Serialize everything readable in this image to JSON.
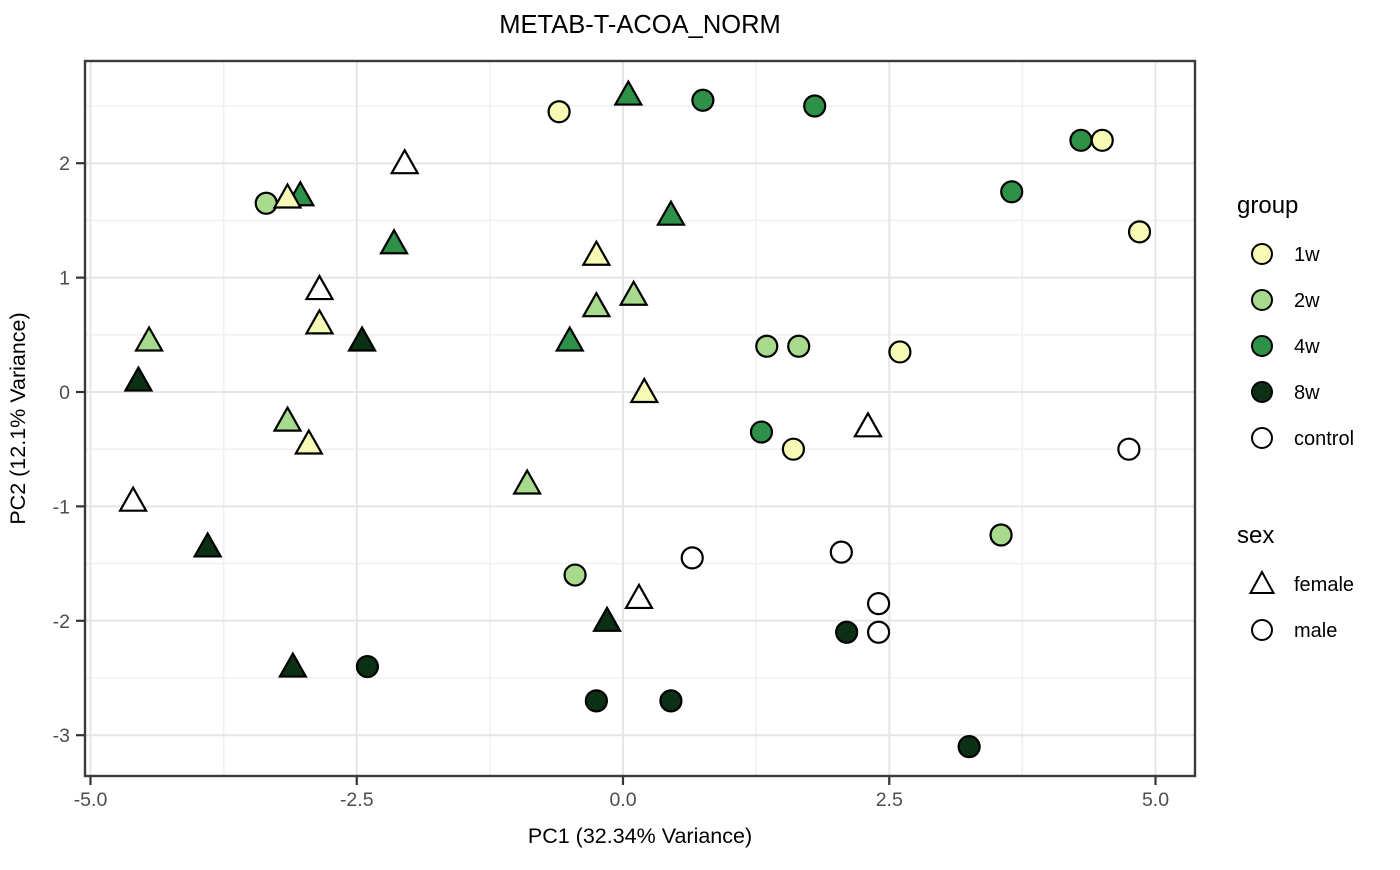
{
  "title": "METAB-T-ACOA_NORM",
  "axes": {
    "x": {
      "label": "PC1 (32.34% Variance)",
      "ticks": [
        -5.0,
        -2.5,
        0.0,
        2.5,
        5.0
      ],
      "tick_labels": [
        "-5.0",
        "-2.5",
        "0.0",
        "2.5",
        "5.0"
      ],
      "minor_ticks": [
        -3.75,
        -1.25,
        1.25,
        3.75
      ]
    },
    "y": {
      "label": "PC2 (12.1% Variance)",
      "ticks": [
        2,
        1,
        0,
        -1,
        -2,
        -3
      ],
      "tick_labels": [
        "2",
        "1",
        "0",
        "-1",
        "-2",
        "-3"
      ],
      "minor_ticks": [
        2.5,
        1.5,
        0.5,
        -0.5,
        -1.5,
        -2.5
      ]
    }
  },
  "colors": {
    "1w": "#F6FAB4",
    "2w": "#A7DA8D",
    "4w": "#2E9148",
    "8w": "#0C3014",
    "control": "#FFFFFF",
    "marker_stroke": "#000000",
    "grid_major": "#E5E5E5",
    "grid_minor": "#F0F0F0",
    "panel_border": "#3B3B3B",
    "tick_text": "#4D4D4D",
    "axis_text": "#000000"
  },
  "legend": {
    "group": {
      "title": "group",
      "items": [
        {
          "label": "1w",
          "color": "#F6FAB4"
        },
        {
          "label": "2w",
          "color": "#A7DA8D"
        },
        {
          "label": "4w",
          "color": "#2E9148"
        },
        {
          "label": "8w",
          "color": "#0C3014"
        },
        {
          "label": "control",
          "color": "#FFFFFF"
        }
      ]
    },
    "sex": {
      "title": "sex",
      "items": [
        {
          "label": "female",
          "shape": "triangle"
        },
        {
          "label": "male",
          "shape": "circle"
        }
      ]
    }
  },
  "chart_data": {
    "type": "scatter",
    "title": "METAB-T-ACOA_NORM",
    "xlabel": "PC1 (32.34% Variance)",
    "ylabel": "PC2 (12.1% Variance)",
    "xlim": [
      -5.05,
      5.37
    ],
    "ylim": [
      -3.36,
      2.89
    ],
    "grid": true,
    "legend_position": "right",
    "series": [
      {
        "group": "1w",
        "sex": "female",
        "shape": "triangle",
        "color": "#F6FAB4",
        "points": [
          [
            -3.15,
            1.7
          ],
          [
            -2.85,
            0.6
          ],
          [
            -0.25,
            1.2
          ],
          [
            0.2,
            0.0
          ],
          [
            -2.95,
            -0.45
          ]
        ]
      },
      {
        "group": "1w",
        "sex": "male",
        "shape": "circle",
        "color": "#F6FAB4",
        "points": [
          [
            -0.6,
            2.45
          ],
          [
            4.5,
            2.2
          ],
          [
            4.85,
            1.4
          ],
          [
            2.6,
            0.35
          ],
          [
            1.6,
            -0.5
          ]
        ]
      },
      {
        "group": "2w",
        "sex": "female",
        "shape": "triangle",
        "color": "#A7DA8D",
        "points": [
          [
            -4.45,
            0.45
          ],
          [
            -3.15,
            -0.25
          ],
          [
            0.1,
            0.85
          ],
          [
            -0.25,
            0.75
          ],
          [
            -0.9,
            -0.8
          ]
        ]
      },
      {
        "group": "2w",
        "sex": "male",
        "shape": "circle",
        "color": "#A7DA8D",
        "points": [
          [
            -3.35,
            1.65
          ],
          [
            1.35,
            0.4
          ],
          [
            1.65,
            0.4
          ],
          [
            -0.45,
            -1.6
          ],
          [
            3.55,
            -1.25
          ]
        ]
      },
      {
        "group": "4w",
        "sex": "female",
        "shape": "triangle",
        "color": "#2E9148",
        "points": [
          [
            0.05,
            2.6
          ],
          [
            0.45,
            1.55
          ],
          [
            -2.15,
            1.3
          ],
          [
            -3.03,
            1.72
          ],
          [
            -0.5,
            0.45
          ]
        ]
      },
      {
        "group": "4w",
        "sex": "male",
        "shape": "circle",
        "color": "#2E9148",
        "points": [
          [
            0.75,
            2.55
          ],
          [
            1.8,
            2.5
          ],
          [
            4.3,
            2.2
          ],
          [
            3.65,
            1.75
          ],
          [
            1.3,
            -0.35
          ]
        ]
      },
      {
        "group": "8w",
        "sex": "female",
        "shape": "triangle",
        "color": "#0C3014",
        "points": [
          [
            -4.55,
            0.1
          ],
          [
            -2.45,
            0.45
          ],
          [
            -3.9,
            -1.35
          ],
          [
            -3.1,
            -2.4
          ],
          [
            -0.15,
            -2.0
          ]
        ]
      },
      {
        "group": "8w",
        "sex": "male",
        "shape": "circle",
        "color": "#0C3014",
        "points": [
          [
            -2.4,
            -2.4
          ],
          [
            -0.25,
            -2.7
          ],
          [
            0.45,
            -2.7
          ],
          [
            2.1,
            -2.1
          ],
          [
            3.25,
            -3.1
          ]
        ]
      },
      {
        "group": "control",
        "sex": "female",
        "shape": "triangle",
        "color": "#FFFFFF",
        "points": [
          [
            -2.05,
            2.0
          ],
          [
            -2.85,
            0.9
          ],
          [
            -4.6,
            -0.95
          ],
          [
            0.15,
            -1.8
          ],
          [
            2.3,
            -0.3
          ]
        ]
      },
      {
        "group": "control",
        "sex": "male",
        "shape": "circle",
        "color": "#FFFFFF",
        "points": [
          [
            0.65,
            -1.45
          ],
          [
            2.05,
            -1.4
          ],
          [
            2.4,
            -1.85
          ],
          [
            2.4,
            -2.1
          ],
          [
            4.75,
            -0.5
          ]
        ]
      }
    ]
  }
}
